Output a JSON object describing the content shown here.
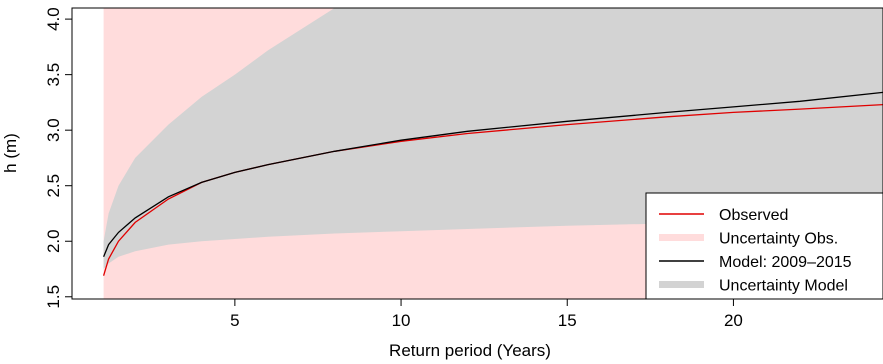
{
  "chart_data": {
    "type": "line",
    "title": "",
    "xlabel": "Return period (Years)",
    "ylabel": "h (m)",
    "xlim": [
      0.1,
      24.5
    ],
    "ylim": [
      1.48,
      4.1
    ],
    "xticks": [
      5,
      10,
      15,
      20
    ],
    "xtick_labels": [
      "5",
      "10",
      "15",
      "20"
    ],
    "yticks": [
      1.5,
      2.0,
      2.5,
      3.0,
      3.5,
      4.0
    ],
    "ytick_labels": [
      "1.5",
      "2.0",
      "2.5",
      "3.0",
      "3.5",
      "4.0"
    ],
    "legend_position": "bottom-right",
    "series": [
      {
        "name": "Observed",
        "kind": "line",
        "color": "#e00000",
        "x": [
          1.05,
          1.2,
          1.5,
          2,
          3,
          4,
          5,
          6,
          8,
          10,
          12,
          15,
          18,
          20,
          22,
          24.5
        ],
        "y": [
          1.69,
          1.84,
          2.0,
          2.17,
          2.38,
          2.53,
          2.62,
          2.69,
          2.81,
          2.9,
          2.97,
          3.05,
          3.12,
          3.16,
          3.19,
          3.23
        ]
      },
      {
        "name": "Uncertainty Obs.",
        "kind": "band",
        "color": "#ffdcdc",
        "x": [
          1.05,
          1.2,
          1.5,
          2,
          3,
          4,
          5,
          6,
          8,
          10,
          12,
          15,
          18,
          20,
          22,
          24.5
        ],
        "lower": [
          1.48,
          1.48,
          1.48,
          1.48,
          1.48,
          1.48,
          1.48,
          1.48,
          1.48,
          1.48,
          1.48,
          1.48,
          1.48,
          1.48,
          1.48,
          1.48
        ],
        "upper": [
          4.1,
          4.1,
          4.1,
          4.1,
          4.1,
          4.1,
          4.1,
          4.1,
          4.1,
          4.1,
          4.1,
          4.1,
          4.1,
          4.1,
          4.1,
          4.1
        ]
      },
      {
        "name": "Model: 2009–2015",
        "kind": "line",
        "color": "#000000",
        "x": [
          1.05,
          1.2,
          1.5,
          2,
          3,
          4,
          5,
          6,
          8,
          10,
          12,
          15,
          18,
          20,
          22,
          24.5
        ],
        "y": [
          1.86,
          1.97,
          2.08,
          2.21,
          2.4,
          2.53,
          2.62,
          2.69,
          2.81,
          2.91,
          2.99,
          3.08,
          3.16,
          3.21,
          3.26,
          3.34
        ]
      },
      {
        "name": "Uncertainty Model",
        "kind": "band",
        "color": "#d3d3d3",
        "x": [
          1.05,
          1.2,
          1.5,
          2,
          3,
          4,
          5,
          6,
          8,
          10,
          12,
          15,
          18,
          20,
          22,
          24.5
        ],
        "lower": [
          1.75,
          1.8,
          1.86,
          1.91,
          1.97,
          2.0,
          2.02,
          2.04,
          2.07,
          2.09,
          2.11,
          2.14,
          2.16,
          2.17,
          2.18,
          2.19
        ],
        "upper": [
          2.0,
          2.25,
          2.5,
          2.75,
          3.05,
          3.3,
          3.5,
          3.72,
          4.1,
          4.1,
          4.1,
          4.1,
          4.1,
          4.1,
          4.1,
          4.1
        ]
      }
    ]
  }
}
